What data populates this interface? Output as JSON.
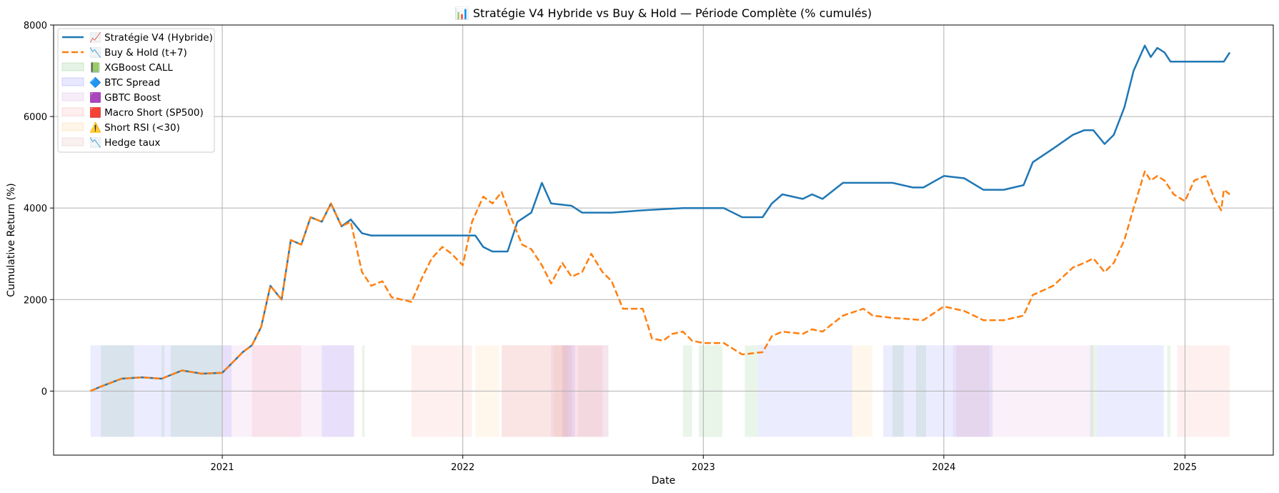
{
  "chart_data": {
    "type": "line",
    "title": "📊 Stratégie V4 Hybride vs Buy & Hold — Période Complète (% cumulés)",
    "xlabel": "Date",
    "ylabel": "Cumulative Return (%)",
    "xlim": [
      "2020-04-20",
      "2025-05-15"
    ],
    "ylim": [
      -1400,
      8000
    ],
    "x_ticks": [
      "2021-01-01",
      "2022-01-01",
      "2023-01-01",
      "2024-01-01",
      "2025-01-01"
    ],
    "x_tick_labels": [
      "2021",
      "2022",
      "2023",
      "2024",
      "2025"
    ],
    "y_ticks": [
      0,
      2000,
      4000,
      6000,
      8000
    ],
    "y_tick_labels": [
      "0",
      "2000",
      "4000",
      "6000",
      "8000"
    ],
    "grid": true,
    "legend_position": "top-left",
    "series": [
      {
        "name": "📈 Stratégie V4 (Hybride)",
        "color": "#1f77b4",
        "style": "solid",
        "points": [
          [
            "2020-06-15",
            0
          ],
          [
            "2020-07-01",
            100
          ],
          [
            "2020-08-01",
            270
          ],
          [
            "2020-09-01",
            300
          ],
          [
            "2020-10-01",
            270
          ],
          [
            "2020-11-01",
            450
          ],
          [
            "2020-12-01",
            380
          ],
          [
            "2021-01-01",
            400
          ],
          [
            "2021-01-15",
            600
          ],
          [
            "2021-02-01",
            850
          ],
          [
            "2021-02-15",
            1000
          ],
          [
            "2021-03-01",
            1400
          ],
          [
            "2021-03-15",
            2300
          ],
          [
            "2021-04-01",
            2000
          ],
          [
            "2021-04-15",
            3300
          ],
          [
            "2021-05-01",
            3200
          ],
          [
            "2021-05-15",
            3800
          ],
          [
            "2021-06-01",
            3700
          ],
          [
            "2021-06-15",
            4100
          ],
          [
            "2021-07-01",
            3600
          ],
          [
            "2021-07-15",
            3750
          ],
          [
            "2021-08-01",
            3450
          ],
          [
            "2021-08-15",
            3400
          ],
          [
            "2022-01-20",
            3400
          ],
          [
            "2022-02-01",
            3150
          ],
          [
            "2022-02-15",
            3050
          ],
          [
            "2022-03-10",
            3050
          ],
          [
            "2022-03-25",
            3700
          ],
          [
            "2022-04-15",
            3900
          ],
          [
            "2022-05-01",
            4550
          ],
          [
            "2022-05-15",
            4100
          ],
          [
            "2022-06-15",
            4050
          ],
          [
            "2022-07-01",
            3900
          ],
          [
            "2022-08-15",
            3900
          ],
          [
            "2022-10-01",
            3950
          ],
          [
            "2022-12-01",
            4000
          ],
          [
            "2023-01-01",
            4000
          ],
          [
            "2023-02-01",
            4000
          ],
          [
            "2023-03-01",
            3800
          ],
          [
            "2023-04-01",
            3800
          ],
          [
            "2023-04-15",
            4100
          ],
          [
            "2023-05-01",
            4300
          ],
          [
            "2023-06-01",
            4200
          ],
          [
            "2023-06-15",
            4300
          ],
          [
            "2023-07-01",
            4200
          ],
          [
            "2023-08-01",
            4550
          ],
          [
            "2023-09-15",
            4550
          ],
          [
            "2023-10-15",
            4550
          ],
          [
            "2023-11-15",
            4450
          ],
          [
            "2023-12-01",
            4450
          ],
          [
            "2024-01-01",
            4700
          ],
          [
            "2024-02-01",
            4650
          ],
          [
            "2024-03-01",
            4400
          ],
          [
            "2024-04-01",
            4400
          ],
          [
            "2024-05-01",
            4500
          ],
          [
            "2024-05-15",
            5000
          ],
          [
            "2024-06-15",
            5300
          ],
          [
            "2024-07-15",
            5600
          ],
          [
            "2024-08-01",
            5700
          ],
          [
            "2024-08-15",
            5700
          ],
          [
            "2024-09-01",
            5400
          ],
          [
            "2024-09-15",
            5600
          ],
          [
            "2024-10-01",
            6200
          ],
          [
            "2024-10-15",
            7000
          ],
          [
            "2024-11-01",
            7550
          ],
          [
            "2024-11-10",
            7300
          ],
          [
            "2024-11-20",
            7500
          ],
          [
            "2024-12-01",
            7400
          ],
          [
            "2024-12-10",
            7200
          ],
          [
            "2025-02-15",
            7200
          ],
          [
            "2025-03-01",
            7200
          ],
          [
            "2025-03-10",
            7400
          ]
        ]
      },
      {
        "name": "📉 Buy & Hold (t+7)",
        "color": "#ff7f0e",
        "style": "dashed",
        "points": [
          [
            "2020-06-15",
            0
          ],
          [
            "2020-07-01",
            100
          ],
          [
            "2020-08-01",
            270
          ],
          [
            "2020-09-01",
            300
          ],
          [
            "2020-10-01",
            270
          ],
          [
            "2020-11-01",
            450
          ],
          [
            "2020-12-01",
            380
          ],
          [
            "2021-01-01",
            400
          ],
          [
            "2021-01-15",
            600
          ],
          [
            "2021-02-01",
            850
          ],
          [
            "2021-02-15",
            1000
          ],
          [
            "2021-03-01",
            1400
          ],
          [
            "2021-03-15",
            2300
          ],
          [
            "2021-04-01",
            2000
          ],
          [
            "2021-04-15",
            3300
          ],
          [
            "2021-05-01",
            3200
          ],
          [
            "2021-05-15",
            3800
          ],
          [
            "2021-06-01",
            3700
          ],
          [
            "2021-06-15",
            4100
          ],
          [
            "2021-07-01",
            3600
          ],
          [
            "2021-07-15",
            3700
          ],
          [
            "2021-08-01",
            2600
          ],
          [
            "2021-08-15",
            2300
          ],
          [
            "2021-09-01",
            2400
          ],
          [
            "2021-09-15",
            2050
          ],
          [
            "2021-10-15",
            1950
          ],
          [
            "2021-11-01",
            2500
          ],
          [
            "2021-11-15",
            2900
          ],
          [
            "2021-12-01",
            3150
          ],
          [
            "2021-12-15",
            3000
          ],
          [
            "2022-01-01",
            2750
          ],
          [
            "2022-01-15",
            3700
          ],
          [
            "2022-02-01",
            4250
          ],
          [
            "2022-02-15",
            4100
          ],
          [
            "2022-03-01",
            4350
          ],
          [
            "2022-03-15",
            3800
          ],
          [
            "2022-04-01",
            3200
          ],
          [
            "2022-04-15",
            3100
          ],
          [
            "2022-05-01",
            2750
          ],
          [
            "2022-05-15",
            2350
          ],
          [
            "2022-06-01",
            2800
          ],
          [
            "2022-06-15",
            2500
          ],
          [
            "2022-07-01",
            2600
          ],
          [
            "2022-07-15",
            3000
          ],
          [
            "2022-08-01",
            2600
          ],
          [
            "2022-08-15",
            2400
          ],
          [
            "2022-09-01",
            1800
          ],
          [
            "2022-10-01",
            1800
          ],
          [
            "2022-10-15",
            1150
          ],
          [
            "2022-11-01",
            1100
          ],
          [
            "2022-11-15",
            1250
          ],
          [
            "2022-12-01",
            1300
          ],
          [
            "2022-12-15",
            1100
          ],
          [
            "2023-01-01",
            1050
          ],
          [
            "2023-02-01",
            1050
          ],
          [
            "2023-03-01",
            800
          ],
          [
            "2023-04-01",
            850
          ],
          [
            "2023-04-15",
            1200
          ],
          [
            "2023-05-01",
            1300
          ],
          [
            "2023-06-01",
            1250
          ],
          [
            "2023-06-15",
            1350
          ],
          [
            "2023-07-01",
            1300
          ],
          [
            "2023-08-01",
            1650
          ],
          [
            "2023-09-01",
            1800
          ],
          [
            "2023-09-15",
            1650
          ],
          [
            "2023-10-15",
            1600
          ],
          [
            "2023-12-01",
            1550
          ],
          [
            "2024-01-01",
            1850
          ],
          [
            "2024-02-01",
            1750
          ],
          [
            "2024-03-01",
            1550
          ],
          [
            "2024-04-01",
            1550
          ],
          [
            "2024-05-01",
            1650
          ],
          [
            "2024-05-15",
            2100
          ],
          [
            "2024-06-15",
            2300
          ],
          [
            "2024-07-15",
            2700
          ],
          [
            "2024-08-01",
            2800
          ],
          [
            "2024-08-15",
            2900
          ],
          [
            "2024-09-01",
            2600
          ],
          [
            "2024-09-15",
            2800
          ],
          [
            "2024-10-01",
            3300
          ],
          [
            "2024-10-15",
            4000
          ],
          [
            "2024-11-01",
            4800
          ],
          [
            "2024-11-10",
            4600
          ],
          [
            "2024-11-20",
            4700
          ],
          [
            "2024-12-01",
            4600
          ],
          [
            "2024-12-15",
            4300
          ],
          [
            "2025-01-01",
            4150
          ],
          [
            "2025-01-15",
            4600
          ],
          [
            "2025-02-01",
            4700
          ],
          [
            "2025-02-15",
            4200
          ],
          [
            "2025-02-25",
            3950
          ],
          [
            "2025-03-01",
            4400
          ],
          [
            "2025-03-10",
            4300
          ]
        ]
      }
    ],
    "span_y_range": [
      -1000,
      1000
    ],
    "span_series": [
      {
        "name": "📗 XGBoost CALL",
        "color": "#2ca02c",
        "intervals": [
          [
            "2020-07-01",
            "2020-08-20"
          ],
          [
            "2020-10-01",
            "2020-10-05"
          ],
          [
            "2020-10-15",
            "2021-01-01"
          ],
          [
            "2021-08-01",
            "2021-08-05"
          ],
          [
            "2022-12-01",
            "2022-12-15"
          ],
          [
            "2022-12-25",
            "2023-01-30"
          ],
          [
            "2023-03-05",
            "2023-03-25"
          ],
          [
            "2023-10-15",
            "2023-11-01"
          ],
          [
            "2023-11-20",
            "2023-12-05"
          ],
          [
            "2024-08-10",
            "2024-08-20"
          ],
          [
            "2024-12-05",
            "2024-12-10"
          ]
        ]
      },
      {
        "name": "🔷 BTC Spread",
        "color": "#4040ff",
        "intervals": [
          [
            "2020-06-15",
            "2021-01-15"
          ],
          [
            "2021-06-01",
            "2021-07-20"
          ],
          [
            "2022-06-01",
            "2022-06-20"
          ],
          [
            "2023-03-25",
            "2023-08-15"
          ],
          [
            "2023-10-01",
            "2024-03-15"
          ],
          [
            "2024-08-20",
            "2024-11-30"
          ]
        ]
      },
      {
        "name": "🟪 GBTC Boost",
        "color": "#c070d0",
        "intervals": [
          [
            "2021-01-01",
            "2021-07-20"
          ],
          [
            "2022-05-15",
            "2022-08-10"
          ],
          [
            "2024-01-15",
            "2024-08-15"
          ]
        ]
      },
      {
        "name": "🟥 Macro Short (SP500)",
        "color": "#ff7070",
        "intervals": [
          [
            "2021-02-15",
            "2021-05-01"
          ],
          [
            "2021-10-15",
            "2022-01-15"
          ],
          [
            "2022-03-01",
            "2022-08-01"
          ],
          [
            "2024-12-20",
            "2025-03-10"
          ]
        ]
      },
      {
        "name": "⚠️ Short RSI (<30)",
        "color": "#ffb040",
        "intervals": [
          [
            "2022-01-20",
            "2022-02-25"
          ],
          [
            "2022-05-20",
            "2022-06-10"
          ],
          [
            "2023-08-15",
            "2023-09-15"
          ]
        ]
      },
      {
        "name": "📉 Hedge taux",
        "color": "#d08080",
        "intervals": [
          [
            "2022-03-01",
            "2022-06-15"
          ],
          [
            "2022-06-25",
            "2022-08-10"
          ],
          [
            "2024-01-20",
            "2024-03-10"
          ]
        ]
      }
    ]
  }
}
